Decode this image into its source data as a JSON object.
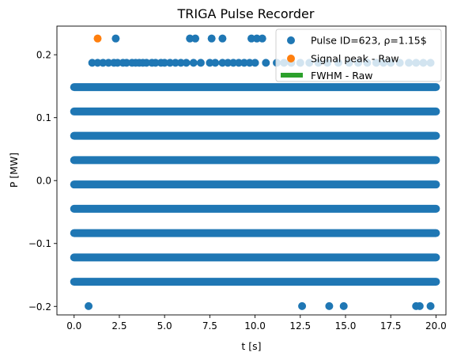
{
  "chart_data": {
    "type": "scatter",
    "title": "TRIGA Pulse Recorder",
    "xlabel": "t [s]",
    "ylabel": "P [MW]",
    "xlim": [
      -0.95,
      20.55
    ],
    "ylim": [
      -0.2135,
      0.2455
    ],
    "x_ticks": [
      0.0,
      2.5,
      5.0,
      7.5,
      10.0,
      12.5,
      15.0,
      17.5,
      20.0
    ],
    "x_tick_labels": [
      "0.0",
      "2.5",
      "5.0",
      "7.5",
      "10.0",
      "12.5",
      "15.0",
      "17.5",
      "20.0"
    ],
    "y_ticks": [
      -0.2,
      -0.1,
      0.0,
      0.1,
      0.2
    ],
    "y_tick_labels": [
      "−0.2",
      "−0.1",
      "0.0",
      "0.1",
      "0.2"
    ],
    "grid": false,
    "legend_position": "top-right",
    "colors": {
      "series": "#1f77b4",
      "peak": "#ff7f0e",
      "fwhm": "#2ca02c",
      "axes": "#000000"
    },
    "series": [
      {
        "name": "Pulse ID=623, ρ=1.15$",
        "style": "scatter",
        "dense_levels": [
          {
            "y": 0.1485,
            "x_range": [
              0.0,
              20.0
            ]
          },
          {
            "y": 0.1098,
            "x_range": [
              0.0,
              20.0
            ]
          },
          {
            "y": 0.0712,
            "x_range": [
              0.0,
              20.0
            ]
          },
          {
            "y": 0.0325,
            "x_range": [
              0.0,
              20.0
            ]
          },
          {
            "y": -0.0062,
            "x_range": [
              0.0,
              20.0
            ]
          },
          {
            "y": -0.0448,
            "x_range": [
              0.0,
              20.0
            ]
          },
          {
            "y": -0.0835,
            "x_range": [
              0.0,
              20.0
            ]
          },
          {
            "y": -0.1222,
            "x_range": [
              0.0,
              20.0
            ]
          },
          {
            "y": -0.1608,
            "x_range": [
              0.0,
              20.0
            ]
          }
        ],
        "sparse_level": {
          "y": 0.1872,
          "x": [
            1.0,
            1.3,
            1.6,
            1.9,
            2.2,
            2.4,
            2.7,
            2.9,
            3.2,
            3.4,
            3.6,
            3.8,
            4.0,
            4.3,
            4.5,
            4.8,
            5.0,
            5.3,
            5.6,
            5.9,
            6.2,
            6.6,
            7.0,
            7.5,
            7.8,
            8.2,
            8.5,
            8.8,
            9.1,
            9.4,
            9.7,
            10.0,
            10.6,
            11.2,
            11.6,
            12.0,
            12.5,
            13.0,
            13.5,
            14.0,
            14.6,
            15.2,
            15.7,
            16.2,
            16.7,
            17.1,
            17.5,
            18.0,
            18.5,
            18.9,
            19.3,
            19.7
          ]
        },
        "outliers_high": {
          "y": 0.2258,
          "x": [
            2.3,
            6.4,
            6.7,
            7.6,
            8.2,
            9.8,
            10.1,
            10.4
          ]
        },
        "outliers_low": {
          "y": -0.1995,
          "x": [
            0.8,
            12.6,
            14.1,
            14.9,
            18.9,
            19.1,
            19.7
          ]
        }
      },
      {
        "name": "Signal peak - Raw",
        "style": "scatter",
        "x": [
          1.3
        ],
        "y": [
          0.2258
        ]
      },
      {
        "name": "FWHM - Raw",
        "style": "line",
        "x": [],
        "y": []
      }
    ]
  }
}
